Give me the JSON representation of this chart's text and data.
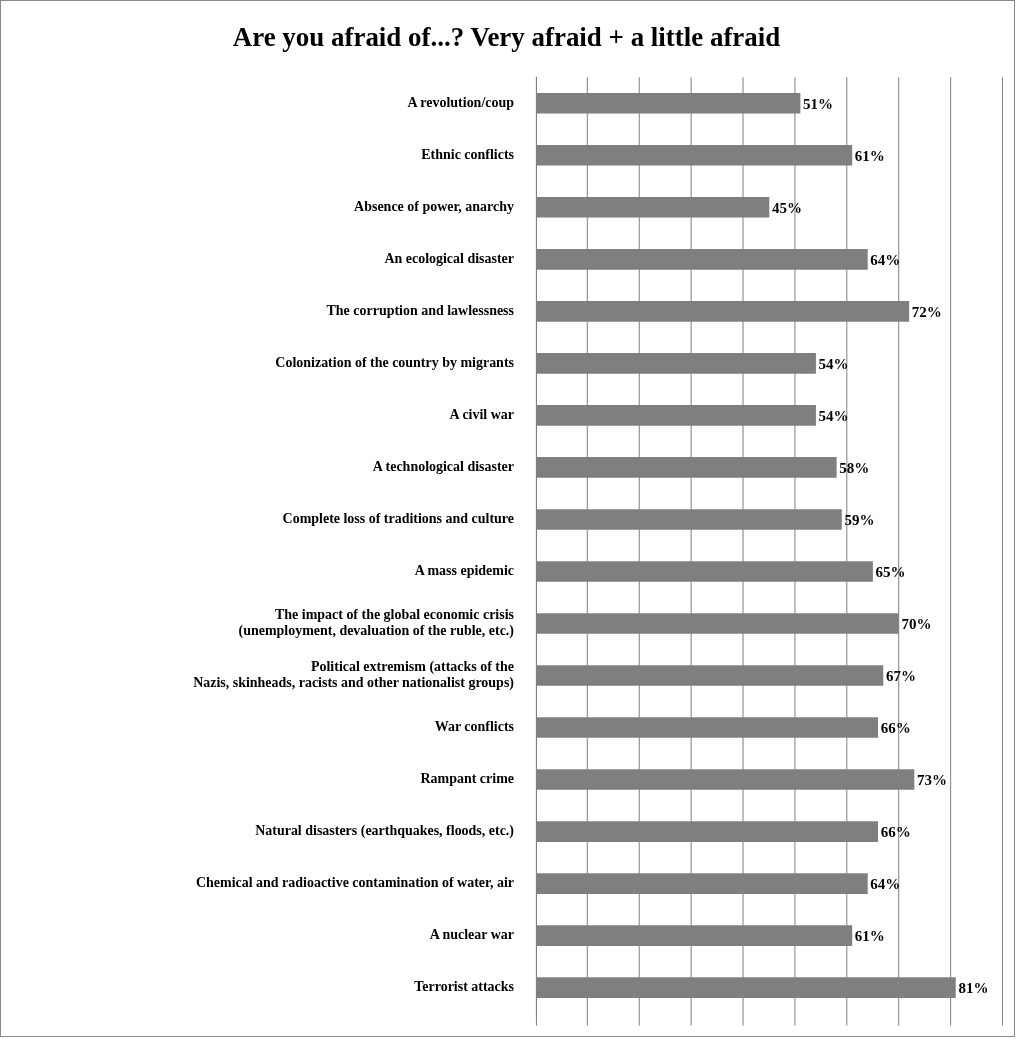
{
  "chart_data": {
    "type": "bar",
    "orientation": "horizontal",
    "title": "Are you afraid of...? Very afraid + a little afraid",
    "categories": [
      "A revolution/coup",
      "Ethnic conflicts",
      "Absence of power, anarchy",
      "An ecological disaster",
      "The corruption and lawlessness",
      "Colonization of the country by migrants",
      "A civil war",
      "A technological disaster",
      "Complete loss of traditions and culture",
      "A mass epidemic",
      "The impact of the global economic crisis\n(unemployment, devaluation of the ruble, etc.)",
      "Political extremism (attacks of the\nNazis, skinheads, racists and other nationalist groups)",
      "War conflicts",
      "Rampant crime",
      "Natural disasters (earthquakes, floods, etc.)",
      "Chemical and radioactive contamination of water, air",
      "A nuclear war",
      "Terrorist attacks"
    ],
    "values": [
      51,
      61,
      45,
      64,
      72,
      54,
      54,
      58,
      59,
      65,
      70,
      67,
      66,
      73,
      66,
      64,
      61,
      81
    ],
    "value_labels": [
      "51%",
      "61%",
      "45%",
      "64%",
      "72%",
      "54%",
      "54%",
      "58%",
      "59%",
      "65%",
      "70%",
      "67%",
      "66%",
      "73%",
      "66%",
      "64%",
      "61%",
      "81%"
    ],
    "color": "#7f7f7f",
    "xlim": [
      0,
      90
    ],
    "xticks": [
      {
        "value": 0,
        "label": null
      },
      {
        "value": 10,
        "label": null
      },
      {
        "value": 20,
        "label": null
      },
      {
        "value": 30,
        "label": null
      },
      {
        "value": 40,
        "label": null
      },
      {
        "value": 50,
        "label": null
      },
      {
        "value": 60,
        "label": null
      },
      {
        "value": 70,
        "label": null
      },
      {
        "value": 80,
        "label": null
      },
      {
        "value": 90,
        "label": null
      }
    ],
    "grid": "x",
    "tick_labels": "y",
    "legend": false
  }
}
